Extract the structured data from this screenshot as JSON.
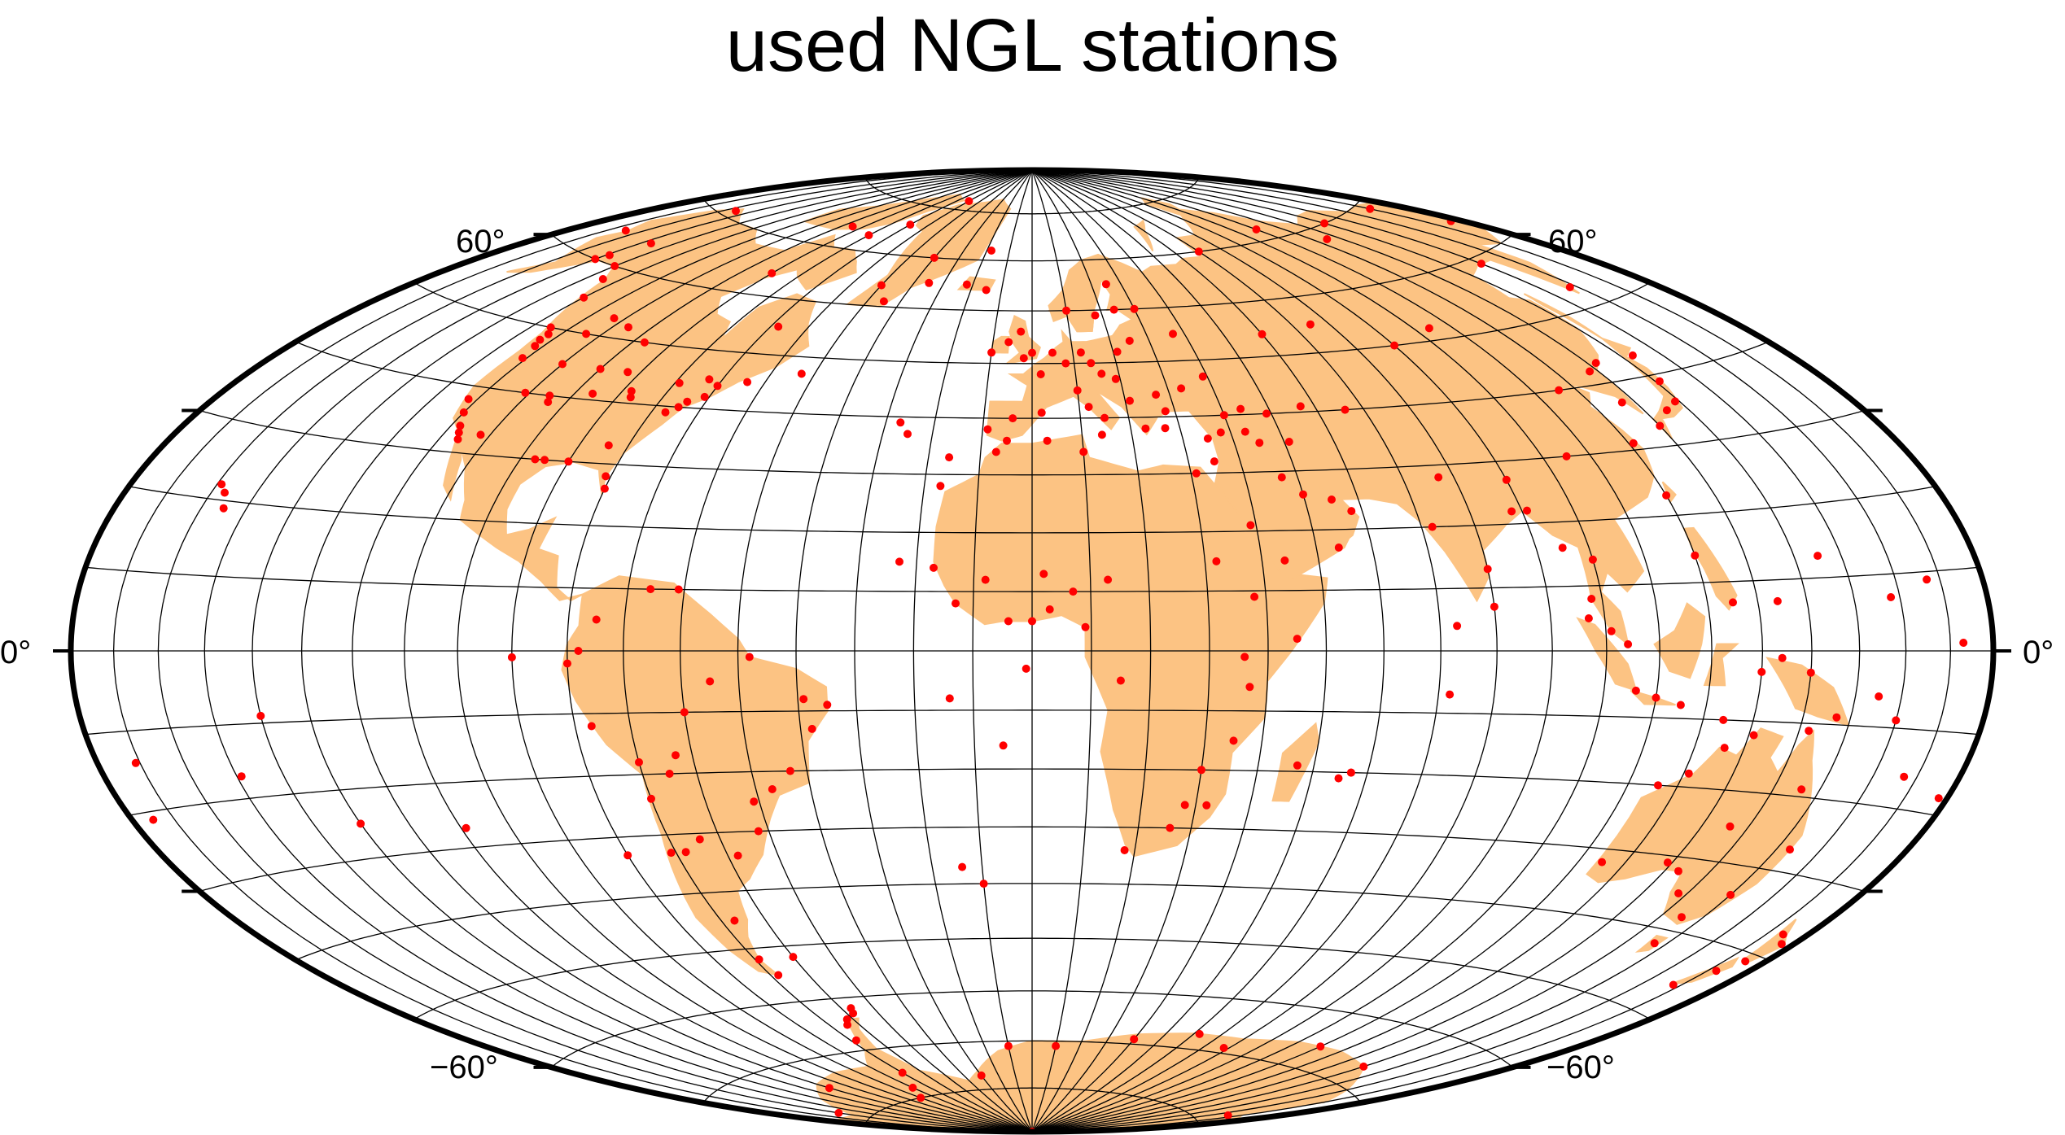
{
  "title": "used NGL stations",
  "colors": {
    "land": "#fcc383",
    "station": "#ff0000",
    "graticule": "#000000",
    "background": "#ffffff"
  },
  "projection": "hammer",
  "labels": {
    "lat60_left": "60°",
    "lat60_right": "60°",
    "equator_left": "0°",
    "equator_right": "0°",
    "latm60_left": "−60°",
    "latm60_right": "−60°"
  },
  "stations": [
    [
      -123,
      48
    ],
    [
      -122,
      47
    ],
    [
      -121,
      45
    ],
    [
      -122,
      38
    ],
    [
      -120,
      36
    ],
    [
      -118,
      34
    ],
    [
      -117,
      33
    ],
    [
      -116,
      32
    ],
    [
      -112,
      33
    ],
    [
      -111,
      40
    ],
    [
      -105,
      40
    ],
    [
      -104,
      39
    ],
    [
      -97,
      30
    ],
    [
      -95,
      30
    ],
    [
      -90,
      30
    ],
    [
      -84,
      33
    ],
    [
      -81,
      28
    ],
    [
      -80,
      26
    ],
    [
      -77,
      39
    ],
    [
      -75,
      40
    ],
    [
      -74,
      41
    ],
    [
      -71,
      42
    ],
    [
      -70,
      44
    ],
    [
      -88,
      42
    ],
    [
      -87,
      41
    ],
    [
      -93,
      45
    ],
    [
      -96,
      41
    ],
    [
      -100,
      45
    ],
    [
      -110,
      45
    ],
    [
      -114,
      50
    ],
    [
      -123,
      49
    ],
    [
      -130,
      55
    ],
    [
      -135,
      58
    ],
    [
      -149,
      61
    ],
    [
      -147,
      64
    ],
    [
      -150,
      60
    ],
    [
      -165,
      64
    ],
    [
      -156,
      71
    ],
    [
      -140,
      60
    ],
    [
      -125,
      50
    ],
    [
      -113,
      53
    ],
    [
      -106,
      52
    ],
    [
      -97,
      50
    ],
    [
      -79,
      44
    ],
    [
      -73,
      45
    ],
    [
      -64,
      45
    ],
    [
      -53,
      47
    ],
    [
      -68,
      55
    ],
    [
      -90,
      64
    ],
    [
      -95,
      74
    ],
    [
      -80,
      73
    ],
    [
      -70,
      76
    ],
    [
      -60,
      82
    ],
    [
      -40,
      70
    ],
    [
      -35,
      65
    ],
    [
      -50,
      64
    ],
    [
      -45,
      61
    ],
    [
      -22,
      65
    ],
    [
      -15,
      64
    ],
    [
      -18,
      72
    ],
    [
      -25,
      37
    ],
    [
      -17,
      28
    ],
    [
      -16,
      33
    ],
    [
      -9,
      38
    ],
    [
      -4,
      40
    ],
    [
      2,
      41
    ],
    [
      2,
      48
    ],
    [
      10,
      45
    ],
    [
      12,
      42
    ],
    [
      15,
      40
    ],
    [
      14,
      37
    ],
    [
      23,
      38
    ],
    [
      28,
      41
    ],
    [
      24,
      60
    ],
    [
      18,
      59
    ],
    [
      10,
      60
    ],
    [
      25,
      65
    ],
    [
      30,
      60
    ],
    [
      37,
      55
    ],
    [
      40,
      40
    ],
    [
      45,
      35
    ],
    [
      51,
      35
    ],
    [
      55,
      25
    ],
    [
      58,
      23
    ],
    [
      60,
      54
    ],
    [
      66,
      40
    ],
    [
      72,
      20
    ],
    [
      77,
      28
    ],
    [
      80,
      13
    ],
    [
      88,
      22
    ],
    [
      90,
      27
    ],
    [
      100,
      14
    ],
    [
      101,
      3
    ],
    [
      104,
      1
    ],
    [
      106,
      -6
    ],
    [
      110,
      -7
    ],
    [
      115,
      -8
    ],
    [
      120,
      23
    ],
    [
      121,
      31
    ],
    [
      116,
      40
    ],
    [
      127,
      37
    ],
    [
      130,
      33
    ],
    [
      135,
      35
    ],
    [
      139,
      36
    ],
    [
      141,
      39
    ],
    [
      143,
      43
    ],
    [
      128,
      42
    ],
    [
      132,
      43
    ],
    [
      105,
      30
    ],
    [
      104,
      52
    ],
    [
      90,
      50
    ],
    [
      75,
      55
    ],
    [
      150,
      59
    ],
    [
      158,
      53
    ],
    [
      177,
      64
    ],
    [
      170,
      69
    ],
    [
      140,
      70
    ],
    [
      125,
      68
    ],
    [
      110,
      72
    ],
    [
      70,
      70
    ],
    [
      -5,
      36
    ],
    [
      -7,
      34
    ],
    [
      3,
      36
    ],
    [
      10,
      34
    ],
    [
      31,
      30
    ],
    [
      32,
      15
    ],
    [
      36,
      -1
    ],
    [
      38,
      9
    ],
    [
      45,
      2
    ],
    [
      37,
      -6
    ],
    [
      28,
      -26
    ],
    [
      18,
      -34
    ],
    [
      26,
      -30
    ],
    [
      32,
      -26
    ],
    [
      30,
      -20
    ],
    [
      35,
      -15
    ],
    [
      47,
      -19
    ],
    [
      57,
      -20
    ],
    [
      15,
      -5
    ],
    [
      9,
      4
    ],
    [
      3,
      7
    ],
    [
      -4,
      5
    ],
    [
      -13,
      8
    ],
    [
      -17,
      14
    ],
    [
      -8,
      12
    ],
    [
      2,
      13
    ],
    [
      7,
      10
    ],
    [
      0,
      5
    ],
    [
      13,
      12
    ],
    [
      -1,
      -3
    ],
    [
      -14,
      -8
    ],
    [
      -10,
      -40
    ],
    [
      -60,
      -10
    ],
    [
      -55,
      -5
    ],
    [
      -48,
      -1
    ],
    [
      -39,
      -8
    ],
    [
      -35,
      -9
    ],
    [
      -38,
      -13
    ],
    [
      -43,
      -20
    ],
    [
      -47,
      -23
    ],
    [
      -51,
      -25
    ],
    [
      -52,
      -30
    ],
    [
      -58,
      -34
    ],
    [
      -64,
      -31
    ],
    [
      -68,
      -33
    ],
    [
      -71,
      -33
    ],
    [
      -70,
      -24
    ],
    [
      -70,
      -18
    ],
    [
      -77,
      -12
    ],
    [
      -80,
      -2
    ],
    [
      -78,
      0
    ],
    [
      -75,
      5
    ],
    [
      -66,
      10
    ],
    [
      -61,
      10
    ],
    [
      -63,
      -17
    ],
    [
      -65,
      -20
    ],
    [
      -67,
      -45
    ],
    [
      -69,
      -52
    ],
    [
      -68,
      -55
    ],
    [
      -60,
      -52
    ],
    [
      -58,
      -63
    ],
    [
      -62,
      -64
    ],
    [
      -64,
      -65
    ],
    [
      -68,
      -68
    ],
    [
      -57,
      -62
    ],
    [
      -70,
      -75
    ],
    [
      -80,
      -78
    ],
    [
      -120,
      -75
    ],
    [
      -160,
      -78
    ],
    [
      166,
      -78
    ],
    [
      140,
      -67
    ],
    [
      110,
      -66
    ],
    [
      78,
      -69
    ],
    [
      62,
      -67
    ],
    [
      40,
      -69
    ],
    [
      10,
      -71
    ],
    [
      -10,
      -71
    ],
    [
      -30,
      -77
    ],
    [
      -90,
      -80
    ],
    [
      0,
      -90
    ],
    [
      115,
      -32
    ],
    [
      116,
      -20
    ],
    [
      131,
      -12
    ],
    [
      136,
      -25
    ],
    [
      138,
      -35
    ],
    [
      145,
      -38
    ],
    [
      147,
      -42
    ],
    [
      150,
      -34
    ],
    [
      153,
      -27
    ],
    [
      146,
      -19
    ],
    [
      142,
      -11
    ],
    [
      121,
      -18
    ],
    [
      126,
      -14
    ],
    [
      129,
      -31
    ],
    [
      133,
      -32
    ],
    [
      174,
      -37
    ],
    [
      175,
      -41
    ],
    [
      172,
      -43
    ],
    [
      168,
      -46
    ],
    [
      177,
      -38
    ],
    [
      147,
      -9
    ],
    [
      155,
      -6
    ],
    [
      160,
      -9
    ],
    [
      167,
      -16
    ],
    [
      178,
      -18
    ],
    [
      -175,
      -21
    ],
    [
      -171,
      -14
    ],
    [
      -149,
      -17
    ],
    [
      -157,
      21
    ],
    [
      -155,
      19
    ],
    [
      -159,
      22
    ],
    [
      -140,
      -9
    ],
    [
      -130,
      -25
    ],
    [
      -109,
      -27
    ],
    [
      -80,
      -33
    ],
    [
      -90,
      -1
    ],
    [
      -27,
      39
    ],
    [
      -23,
      15
    ],
    [
      -5,
      -16
    ],
    [
      -14,
      -37
    ],
    [
      57,
      -20
    ],
    [
      55,
      -21
    ],
    [
      72,
      -7
    ],
    [
      73,
      4
    ],
    [
      80,
      7
    ],
    [
      91,
      22
    ],
    [
      95,
      16
    ],
    [
      97,
      5
    ],
    [
      98,
      8
    ],
    [
      120,
      14
    ],
    [
      125,
      7
    ],
    [
      124,
      -10
    ],
    [
      130,
      -3
    ],
    [
      134,
      -1
    ],
    [
      140,
      -3
    ],
    [
      145,
      13
    ],
    [
      134,
      7
    ],
    [
      158,
      7
    ],
    [
      167,
      9
    ],
    [
      173,
      1
    ],
    [
      -10,
      52
    ],
    [
      -6,
      54
    ],
    [
      -3,
      56
    ],
    [
      -2,
      51
    ],
    [
      0,
      52
    ],
    [
      5,
      52
    ],
    [
      8,
      50
    ],
    [
      12,
      52
    ],
    [
      14,
      50
    ],
    [
      16,
      48
    ],
    [
      19,
      47
    ],
    [
      21,
      52
    ],
    [
      25,
      54
    ],
    [
      21,
      43
    ],
    [
      27,
      44
    ],
    [
      33,
      45
    ],
    [
      39,
      47
    ],
    [
      44,
      41
    ],
    [
      49,
      40
    ],
    [
      27,
      38
    ],
    [
      35,
      32
    ],
    [
      35,
      36
    ],
    [
      38,
      37
    ],
    [
      43,
      37
    ],
    [
      47,
      29
    ],
    [
      50,
      26
    ],
    [
      39,
      21
    ],
    [
      44,
      15
    ],
    [
      54,
      17
    ],
    [
      57,
      41
    ]
  ]
}
